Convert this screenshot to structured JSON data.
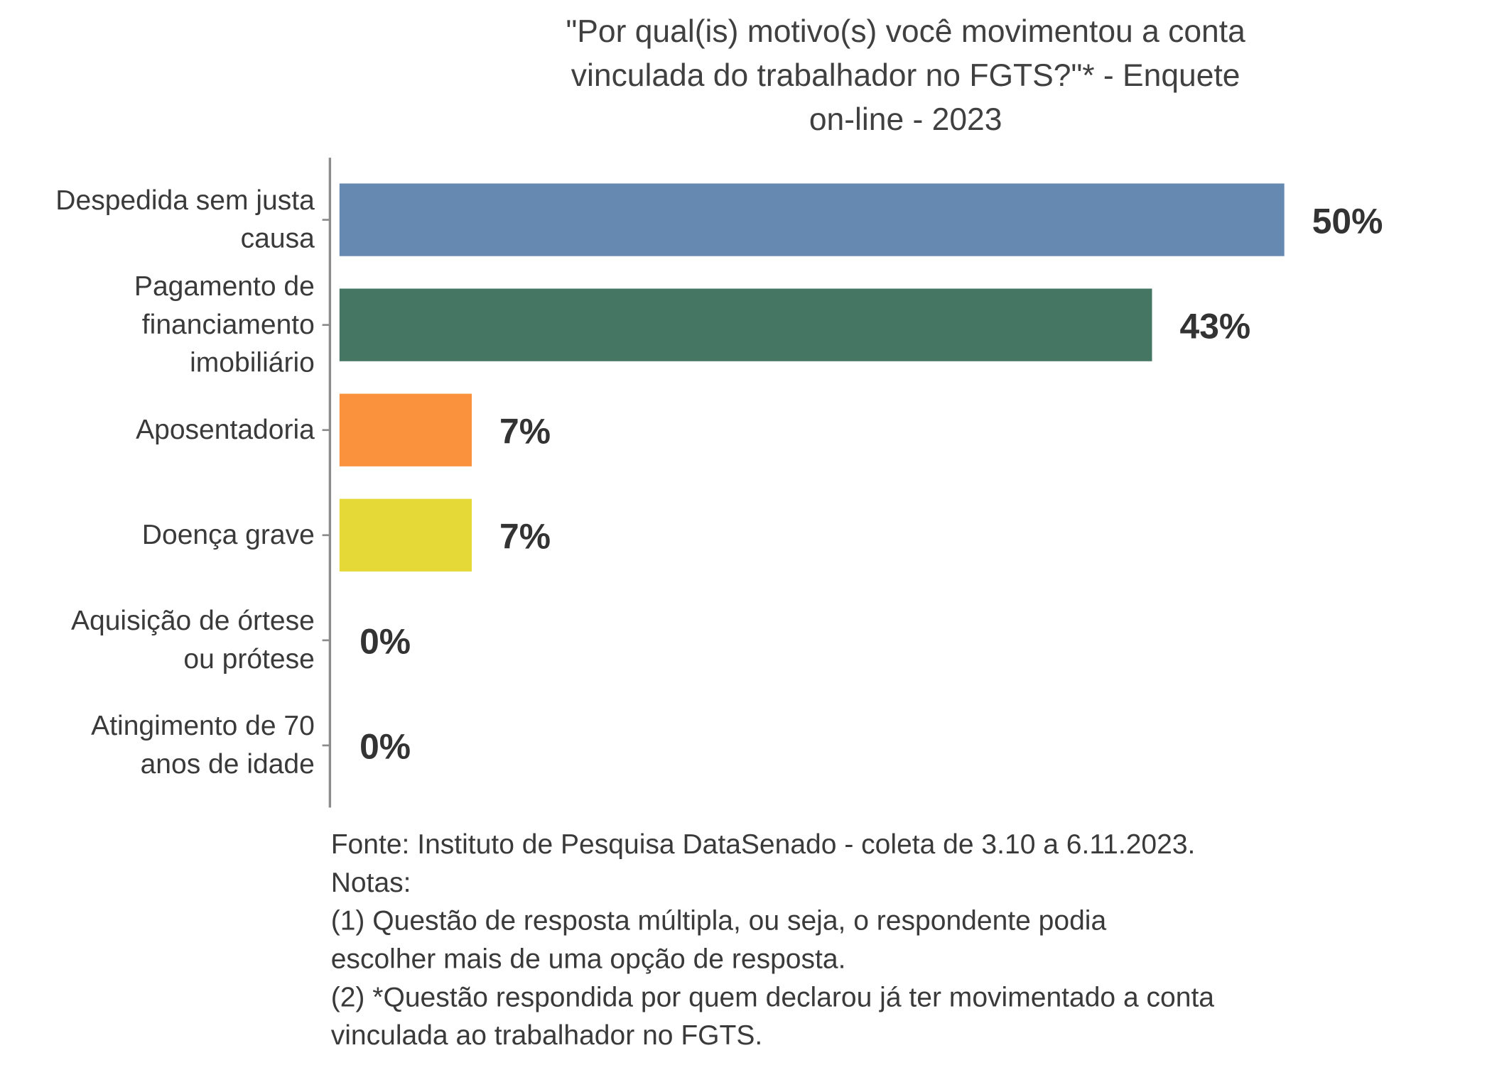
{
  "chart_data": {
    "type": "bar",
    "orientation": "horizontal",
    "title_lines": [
      "\"Por qual(is) motivo(s) você movimentou a conta",
      "vinculada do trabalhador no FGTS?\"* - Enquete",
      "on-line - 2023"
    ],
    "categories": [
      [
        "Despedida sem justa",
        "causa"
      ],
      [
        "Pagamento de",
        "financiamento",
        "imobiliário"
      ],
      [
        "Aposentadoria"
      ],
      [
        "Doença grave"
      ],
      [
        "Aquisição de órtese",
        "ou prótese"
      ],
      [
        "Atingimento de 70",
        "anos de idade"
      ]
    ],
    "values": [
      50,
      43,
      7,
      7,
      0,
      0
    ],
    "data_labels": [
      "50%",
      "43%",
      "7%",
      "7%",
      "0%",
      "0%"
    ],
    "colors": [
      "#6689b1",
      "#457663",
      "#fa923d",
      "#e4d936",
      "#cccccc",
      "#cccccc"
    ],
    "xlim": [
      0,
      50
    ],
    "grid": false,
    "legend": "none",
    "xlabel": "",
    "ylabel": ""
  },
  "footnote": [
    "Fonte: Instituto de Pesquisa DataSenado - coleta de 3.10 a 6.11.2023.",
    "Notas:",
    "(1) Questão de resposta múltipla, ou seja, o respondente podia",
    "escolher mais de uma opção de resposta.",
    "(2) *Questão respondida por quem declarou já ter movimentado a conta",
    "vinculada ao trabalhador no FGTS."
  ]
}
